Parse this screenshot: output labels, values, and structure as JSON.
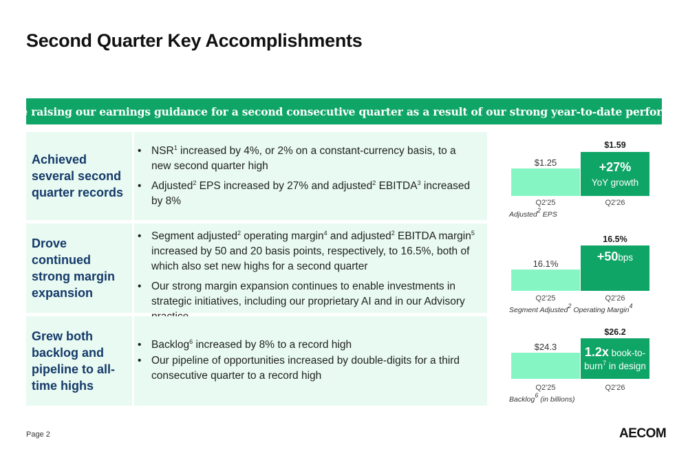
{
  "title": "Second Quarter Key Accomplishments",
  "banner": "We are raising our earnings guidance for a second consecutive quarter as a result of our strong year-to-date performance",
  "rows": [
    {
      "heading": "Achieved several second quarter records",
      "bullets": [
        [
          "NSR",
          "1",
          " increased by 4%, or 2% on a constant-currency basis, to a new second quarter high"
        ],
        [
          "Adjusted",
          "2",
          " EPS increased by 27% and adjusted",
          "2",
          " EBITDA",
          "3",
          " increased by 8%"
        ]
      ]
    },
    {
      "heading": "Drove continued strong margin expansion",
      "bullets": [
        [
          "Segment adjusted",
          "2",
          " operating margin",
          "4",
          " and adjusted",
          "2",
          " EBITDA margin",
          "5",
          " increased by 50 and 20 basis points, respectively, to 16.5%, both of which also set new highs for a second quarter"
        ],
        [
          "Our strong margin expansion continues to enable investments in strategic initiatives, including our proprietary AI and in our Advisory practice"
        ]
      ]
    },
    {
      "heading": "Grew both backlog and pipeline to all-time highs",
      "bullets": [
        [
          "Backlog",
          "6",
          " increased by 8% to a record high"
        ],
        [
          "Our pipeline of opportunities increased by double-digits for a third consecutive quarter to a record high"
        ]
      ]
    }
  ],
  "charts": [
    {
      "prior_value": "$1.25",
      "current_value": "$1.59",
      "prior_label": "Q2'25",
      "current_label": "Q2'26",
      "highlight_big": "+27%",
      "highlight_small": "YoY growth",
      "caption_pre": "Adjusted",
      "caption_sup": "2",
      "caption_post": " EPS",
      "caption_sup2": ""
    },
    {
      "prior_value": "16.1%",
      "current_value": "16.5%",
      "prior_label": "Q2'25",
      "current_label": "Q2'26",
      "highlight_big": "+50",
      "highlight_small": " bps",
      "caption_pre": "Segment Adjusted",
      "caption_sup": "2",
      "caption_post": " Operating Margin",
      "caption_sup2": "4"
    },
    {
      "prior_value": "$24.3",
      "current_value": "$26.2",
      "prior_label": "Q2'25",
      "current_label": "Q2'26",
      "highlight_big": "1.2x",
      "highlight_small": " book-to-",
      "highlight_line2_pre": "burn",
      "highlight_line2_sup": "7",
      "highlight_line2_post": " in design",
      "caption_pre": "Backlog",
      "caption_sup": "6",
      "caption_post": " (in billions)",
      "caption_sup2": ""
    }
  ],
  "footer": {
    "page": "Page 2",
    "logo": "AECOM"
  }
}
